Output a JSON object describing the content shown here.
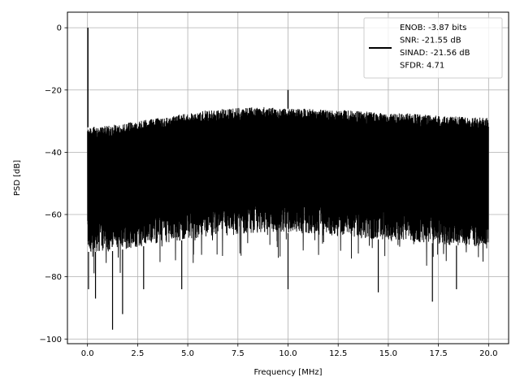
{
  "chart_data": {
    "type": "line",
    "title": "",
    "xlabel": "Frequency [MHz]",
    "ylabel": "PSD [dB]",
    "xlim": [
      -1.0,
      21.0
    ],
    "ylim": [
      -101.5,
      5.0
    ],
    "x_ticks": [
      0.0,
      2.5,
      5.0,
      7.5,
      10.0,
      12.5,
      15.0,
      17.5,
      20.0
    ],
    "x_tick_labels": [
      "0.0",
      "2.5",
      "5.0",
      "7.5",
      "10.0",
      "12.5",
      "15.0",
      "17.5",
      "20.0"
    ],
    "y_ticks": [
      0,
      -20,
      -40,
      -60,
      -80,
      -100
    ],
    "y_tick_labels": [
      "0",
      "−20",
      "−40",
      "−60",
      "−80",
      "−100"
    ],
    "grid": true,
    "legend_position": "upper right",
    "series_color": "#000000",
    "legend": {
      "lines": [
        "ENOB: -3.87 bits",
        "SNR: -21.55 dB",
        "SINAD: -21.56 dB",
        "SFDR: 4.71"
      ]
    },
    "series": [
      {
        "noise_band": {
          "x": [
            0.0,
            1.0,
            2.0,
            3.0,
            4.0,
            5.0,
            6.0,
            7.0,
            8.0,
            9.0,
            10.0,
            11.0,
            12.0,
            13.0,
            14.0,
            15.0,
            16.0,
            17.0,
            18.0,
            19.0,
            20.0
          ],
          "upper": [
            -32,
            -31.5,
            -30.5,
            -29.5,
            -28.5,
            -27.5,
            -26.5,
            -26,
            -25.5,
            -25.5,
            -26,
            -26,
            -26.5,
            -26.5,
            -27,
            -27.5,
            -27.5,
            -28,
            -28.5,
            -28.5,
            -29
          ],
          "lower_typical": [
            -72,
            -72,
            -71,
            -70,
            -69,
            -68,
            -67,
            -67,
            -66,
            -66,
            -66,
            -66,
            -67,
            -67,
            -68,
            -68,
            -69,
            -69,
            -70,
            -70,
            -71
          ]
        },
        "peaks": [
          {
            "x": 0.02,
            "y": 0.0
          },
          {
            "x": 10.0,
            "y": -20.0
          }
        ],
        "dips": [
          {
            "x": 0.05,
            "y": -84
          },
          {
            "x": 0.4,
            "y": -87
          },
          {
            "x": 1.25,
            "y": -97
          },
          {
            "x": 1.75,
            "y": -92
          },
          {
            "x": 2.8,
            "y": -84
          },
          {
            "x": 4.7,
            "y": -84
          },
          {
            "x": 10.0,
            "y": -84
          },
          {
            "x": 14.5,
            "y": -85
          },
          {
            "x": 17.2,
            "y": -88
          },
          {
            "x": 18.4,
            "y": -84
          }
        ]
      }
    ]
  }
}
